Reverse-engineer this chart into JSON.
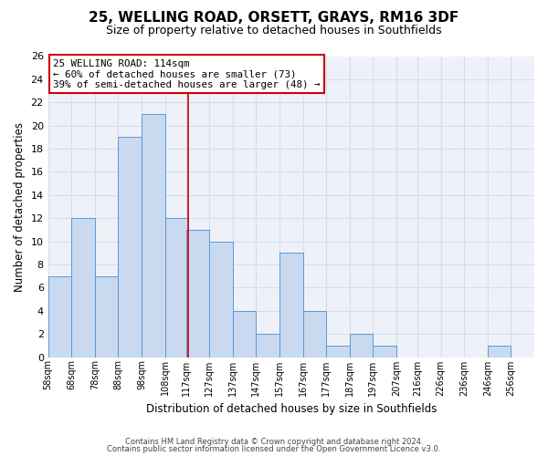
{
  "title": "25, WELLING ROAD, ORSETT, GRAYS, RM16 3DF",
  "subtitle": "Size of property relative to detached houses in Southfields",
  "xlabel": "Distribution of detached houses by size in Southfields",
  "ylabel": "Number of detached properties",
  "bar_labels": [
    "58sqm",
    "68sqm",
    "78sqm",
    "88sqm",
    "98sqm",
    "108sqm",
    "117sqm",
    "127sqm",
    "137sqm",
    "147sqm",
    "157sqm",
    "167sqm",
    "177sqm",
    "187sqm",
    "197sqm",
    "207sqm",
    "216sqm",
    "226sqm",
    "236sqm",
    "246sqm",
    "256sqm"
  ],
  "bar_values": [
    7,
    12,
    7,
    19,
    21,
    12,
    11,
    10,
    4,
    2,
    9,
    4,
    1,
    2,
    1,
    0,
    0,
    0,
    0,
    1,
    0
  ],
  "bar_color": "#c8d9f0",
  "bar_edge_color": "#5b9bd5",
  "property_line_color": "#cc0000",
  "annotation_title": "25 WELLING ROAD: 114sqm",
  "annotation_line1": "← 60% of detached houses are smaller (73)",
  "annotation_line2": "39% of semi-detached houses are larger (48) →",
  "annotation_box_color": "#cc0000",
  "ylim": [
    0,
    26
  ],
  "yticks": [
    0,
    2,
    4,
    6,
    8,
    10,
    12,
    14,
    16,
    18,
    20,
    22,
    24,
    26
  ],
  "footer1": "Contains HM Land Registry data © Crown copyright and database right 2024.",
  "footer2": "Contains public sector information licensed under the Open Government Licence v3.0.",
  "bar_left_edges": [
    53,
    63,
    73,
    83,
    93,
    103,
    112,
    122,
    132,
    142,
    152,
    162,
    172,
    182,
    192,
    202,
    211,
    221,
    231,
    241,
    251
  ],
  "bar_widths": [
    10,
    10,
    10,
    10,
    10,
    10,
    10,
    10,
    10,
    10,
    10,
    10,
    10,
    10,
    10,
    10,
    10,
    10,
    10,
    10,
    10
  ],
  "property_line_x": 113,
  "xlim_left": 53,
  "xlim_right": 261,
  "grid_color": "#d0dff0",
  "background_color": "#eef2f8"
}
